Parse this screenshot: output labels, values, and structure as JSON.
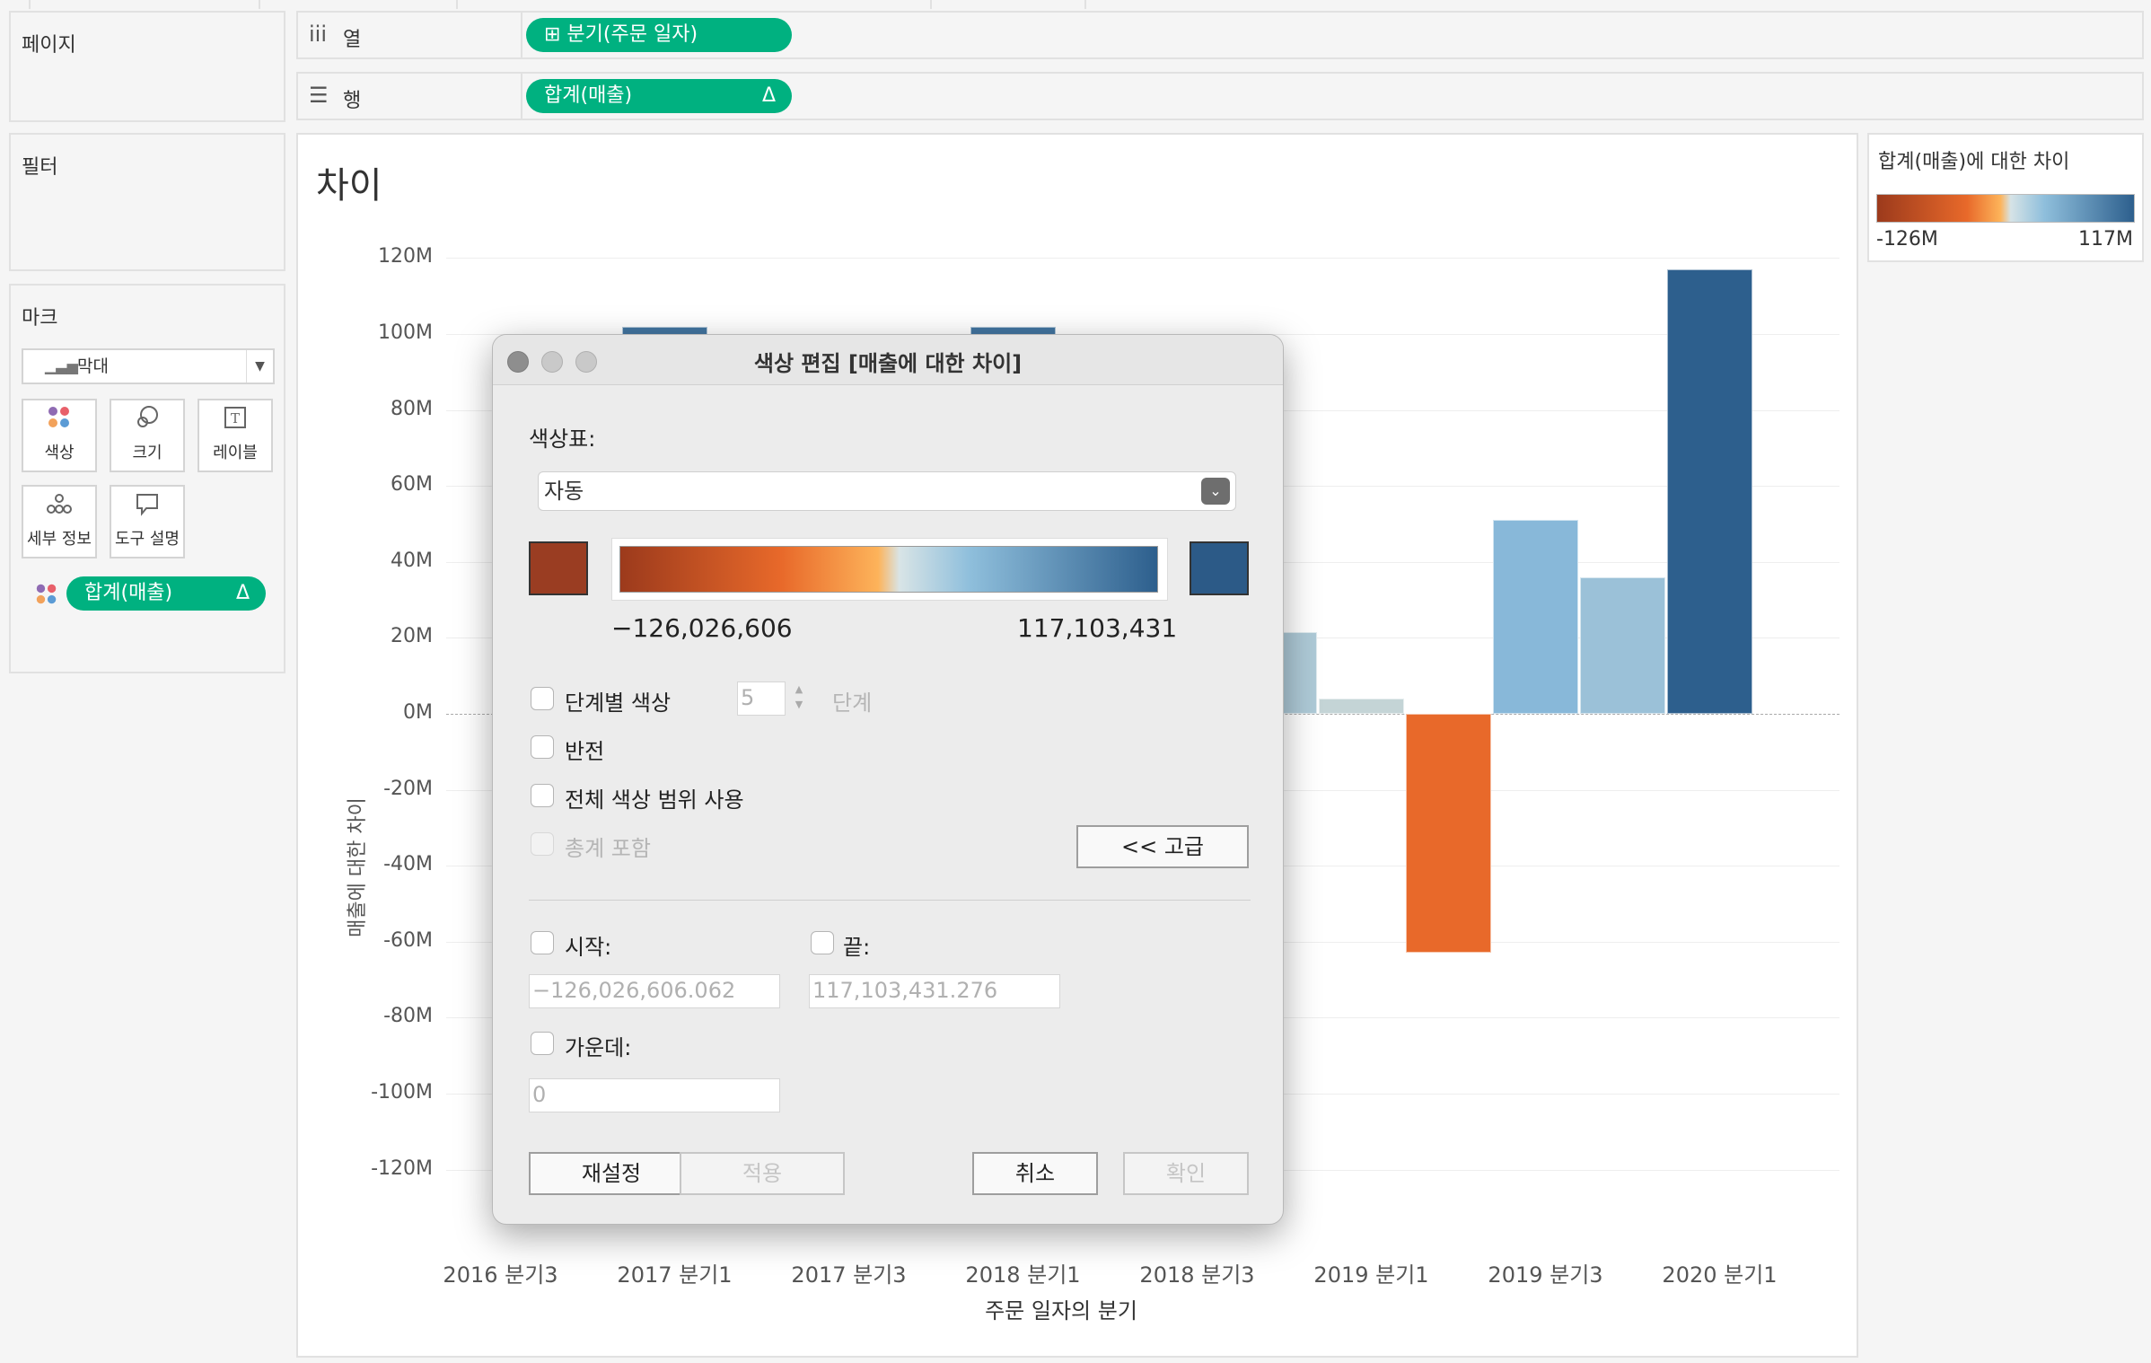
{
  "pages_panel": {
    "title": "페이지"
  },
  "filters_panel": {
    "title": "필터"
  },
  "marks_panel": {
    "title": "마크",
    "mark_type": "막대",
    "cards": [
      {
        "label": "색상",
        "icon": "color-icon"
      },
      {
        "label": "크기",
        "icon": "size-icon"
      },
      {
        "label": "레이블",
        "icon": "label-icon"
      },
      {
        "label": "세부 정보",
        "icon": "detail-icon"
      },
      {
        "label": "도구 설명",
        "icon": "tooltip-icon"
      }
    ],
    "color_pill": "합계(매출)",
    "color_pill_marker": "Δ"
  },
  "columns_shelf": {
    "label": "열",
    "pill": "⊞ 분기(주문 일자)"
  },
  "rows_shelf": {
    "label": "행",
    "pill": "합계(매출)",
    "pill_marker": "Δ"
  },
  "viz": {
    "title": "차이",
    "ylabel": "매출에 대한 차이",
    "xlabel": "주문 일자의 분기"
  },
  "legend": {
    "title": "합계(매출)에 대한 차이",
    "min": "-126M",
    "max": "117M"
  },
  "dialog": {
    "title": "색상 편집 [매출에 대한 차이]",
    "palette_label": "색상표:",
    "palette_value": "자동",
    "min_value": "−126,026,606",
    "max_value": "117,103,431",
    "stepped_label": "단계별 색상",
    "steps_value": "5",
    "steps_unit": "단계",
    "reverse_label": "반전",
    "full_range_label": "전체 색상 범위 사용",
    "totals_label": "총계 포함",
    "advanced_button": "<< 고급",
    "start_label": "시작:",
    "start_value": "−126,026,606.062",
    "end_label": "끝:",
    "end_value": "117,103,431.276",
    "center_label": "가운데:",
    "center_value": "0",
    "reset_button": "재설정",
    "apply_button": "적용",
    "cancel_button": "취소",
    "ok_button": "확인"
  },
  "chart_data": {
    "type": "bar",
    "title": "차이",
    "xlabel": "주문 일자의 분기",
    "ylabel": "매출에 대한 차이",
    "ylim": [
      -130,
      125
    ],
    "y_unit": "M",
    "y_ticks": [
      "120M",
      "100M",
      "80M",
      "60M",
      "40M",
      "20M",
      "0M",
      "-20M",
      "-40M",
      "-60M",
      "-80M",
      "-100M",
      "-120M"
    ],
    "x_ticks": [
      "2016 분기3",
      "2017 분기1",
      "2017 분기3",
      "2018 분기1",
      "2018 분기3",
      "2019 분기1",
      "2019 분기3",
      "2020 분기1"
    ],
    "color_range": [
      -126,
      117
    ],
    "bars": [
      {
        "index": 2,
        "value": 102
      },
      {
        "index": 6,
        "value": 102
      },
      {
        "index": 9,
        "value": 21.5
      },
      {
        "index": 10,
        "value": 4
      },
      {
        "index": 11,
        "value": -63
      },
      {
        "index": 12,
        "value": 51
      },
      {
        "index": 13,
        "value": 36
      },
      {
        "index": 14,
        "value": 117
      }
    ]
  }
}
